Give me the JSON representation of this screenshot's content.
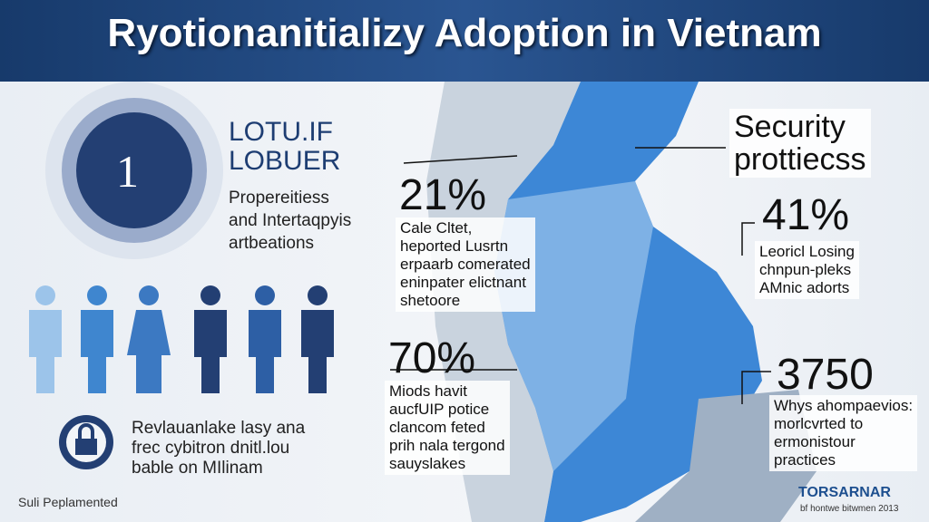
{
  "header": {
    "title": "Ryotionanitializy Adoption in Vietnam"
  },
  "badge": {
    "number": "1",
    "brand": [
      "LOTU.IF",
      "LOBUER"
    ],
    "lines": [
      "Propereitiess",
      "and Intertaqpyis",
      "artbeations"
    ]
  },
  "lock": {
    "lines": [
      "Revlauanlake lasy ana",
      "frec cybitron dnitl.lou",
      "bable on MIlinam"
    ]
  },
  "footer": {
    "left": "Suli Peplamented",
    "logo": "TORSARNAR",
    "logo_sub": "bf hontwe bitwmen 2013"
  },
  "security": {
    "lines": [
      "Security",
      "prottiecss"
    ]
  },
  "stats": [
    {
      "value": "21%",
      "lines": [
        "Cale Cltet,",
        "heported Lusrtn",
        "erpaarb comerated",
        "eninpater elictnant",
        "shetoore"
      ]
    },
    {
      "value": "70%",
      "lines": [
        "Miods havit",
        "aucfUIP potice",
        "clancom feted",
        "prih nala tergond",
        "sauyslakes"
      ]
    },
    {
      "value": "41%",
      "lines": [
        "Leoricl Losing",
        "chnpun-pleks",
        "AMnic adorts"
      ]
    },
    {
      "value": "3750",
      "lines": [
        "Whys ahompaevios:",
        "morlcvrted to",
        "ermonistour",
        "practices"
      ]
    }
  ]
}
